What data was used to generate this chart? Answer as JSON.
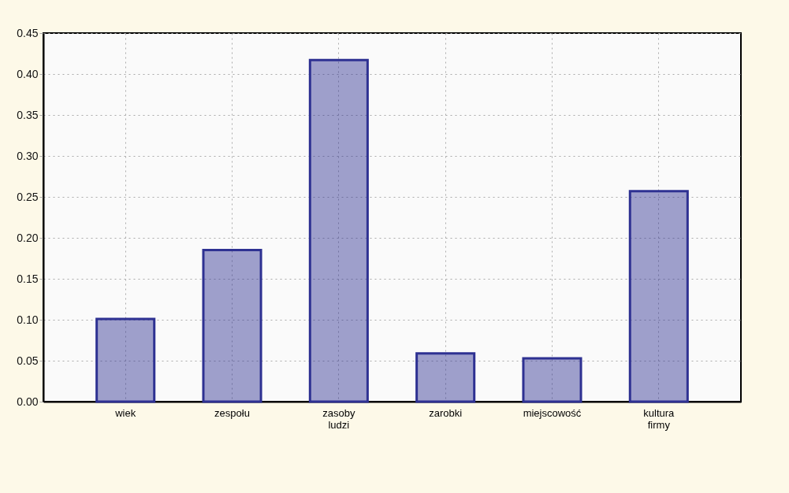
{
  "chart_data": {
    "type": "bar",
    "categories": [
      "wiek",
      "zespołu",
      "zasoby ludzi",
      "zarobki",
      "miejscowość",
      "kultura firmy"
    ],
    "values": [
      0.101,
      0.185,
      0.417,
      0.059,
      0.053,
      0.257
    ],
    "color": "#2e3192",
    "ylim": [
      0,
      0.45
    ],
    "yticks": [
      {
        "value": 0,
        "label": "0.00"
      },
      {
        "value": 0.05,
        "label": "0.05"
      },
      {
        "value": 0.1,
        "label": "0.10"
      },
      {
        "value": 0.15,
        "label": "0.15"
      },
      {
        "value": 0.2,
        "label": "0.20"
      },
      {
        "value": 0.25,
        "label": "0.25"
      },
      {
        "value": 0.3,
        "label": "0.30"
      },
      {
        "value": 0.35,
        "label": "0.35"
      },
      {
        "value": 0.4,
        "label": "0.40"
      },
      {
        "value": 0.45,
        "label": "0.45"
      }
    ],
    "grid": true
  }
}
